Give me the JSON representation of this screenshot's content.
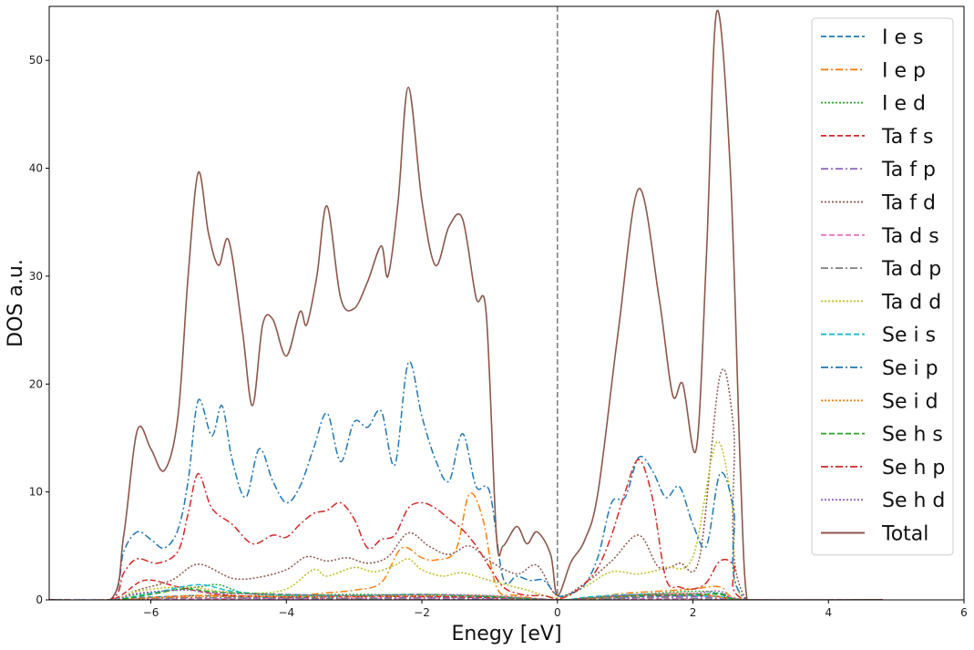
{
  "chart_data": {
    "type": "line",
    "title": "",
    "xlabel": "Enegy [eV]",
    "ylabel": "DOS a.u.",
    "xlim": [
      -7.5,
      6
    ],
    "ylim": [
      0,
      55
    ],
    "xticks": [
      -6,
      -4,
      -2,
      0,
      2,
      4,
      6
    ],
    "yticks": [
      0,
      10,
      20,
      30,
      40,
      50
    ],
    "xtick_labels": [
      "−6",
      "−4",
      "−2",
      "0",
      "2",
      "4",
      "6"
    ],
    "ytick_labels": [
      "0",
      "10",
      "20",
      "30",
      "40",
      "50"
    ],
    "grid": false,
    "legend_position": "top-right",
    "vline": {
      "x": 0,
      "color": "#808080",
      "style": "dashed"
    },
    "series": [
      {
        "name": "I e s",
        "color": "#1f77b4",
        "style": "dashed",
        "x": [
          -7.5,
          -6.6,
          -6.2,
          -5.8,
          -5.3,
          -4.8,
          -4.0,
          -3.0,
          -2.0,
          -1.0,
          -0.5,
          0,
          0.5,
          1.2,
          2.0,
          2.4,
          2.8,
          4.8
        ],
        "y": [
          0,
          0,
          0.2,
          0.3,
          0.4,
          0.3,
          0.2,
          0.3,
          0.3,
          0.2,
          0.1,
          0,
          0.1,
          0.3,
          0.4,
          0.6,
          0,
          0
        ]
      },
      {
        "name": "I e p",
        "color": "#ff7f0e",
        "style": "dashdot",
        "x": [
          -7.5,
          -6.6,
          -5.3,
          -4.0,
          -3.5,
          -3.0,
          -2.6,
          -2.3,
          -2.0,
          -1.8,
          -1.5,
          -1.3,
          -1.1,
          -0.9,
          -0.6,
          0,
          0.5,
          1.0,
          1.5,
          2.0,
          2.4,
          2.8,
          4.8
        ],
        "y": [
          0,
          0,
          0.4,
          0.3,
          0.6,
          0.9,
          1.6,
          4.8,
          3.9,
          3.7,
          4.6,
          9.8,
          7.5,
          1.2,
          0.4,
          0,
          0.2,
          0.6,
          0.8,
          1.0,
          1.2,
          0,
          0
        ]
      },
      {
        "name": "I e d",
        "color": "#2ca02c",
        "style": "dotted",
        "x": [
          -7.5,
          -6.6,
          -6.2,
          -5.3,
          -5.0,
          -4.6,
          -4.0,
          -3.0,
          -2.0,
          -1.0,
          0,
          0.5,
          1.2,
          2.0,
          2.4,
          2.8,
          4.8
        ],
        "y": [
          0,
          0,
          0.5,
          1.2,
          1.4,
          0.6,
          0.4,
          0.5,
          0.4,
          0.3,
          0,
          0.2,
          0.5,
          0.8,
          0.6,
          0,
          0
        ]
      },
      {
        "name": "Ta f s",
        "color": "#d62728",
        "style": "dashed",
        "x": [
          -7.5,
          -6.6,
          -6.1,
          -5.6,
          -5.0,
          -4.2,
          -3.0,
          -2.0,
          -1.0,
          0,
          0.5,
          1.2,
          2.0,
          2.4,
          2.8,
          4.8
        ],
        "y": [
          0,
          0,
          1.8,
          1.2,
          0.5,
          0.3,
          0.3,
          0.3,
          0.2,
          0,
          0.2,
          0.4,
          0.4,
          0.3,
          0,
          0
        ]
      },
      {
        "name": "Ta f p",
        "color": "#9467bd",
        "style": "dashdot",
        "x": [
          -7.5,
          -6.6,
          -5.5,
          -4.0,
          -2.0,
          0,
          1.0,
          2.0,
          2.8,
          4.8
        ],
        "y": [
          0,
          0,
          0.2,
          0.1,
          0.2,
          0,
          0.2,
          0.3,
          0,
          0
        ]
      },
      {
        "name": "Ta f d",
        "color": "#8c564b",
        "style": "dotted",
        "x": [
          -7.5,
          -6.6,
          -6.2,
          -5.7,
          -5.3,
          -4.8,
          -4.4,
          -4.0,
          -3.7,
          -3.4,
          -3.1,
          -2.8,
          -2.5,
          -2.2,
          -1.9,
          -1.6,
          -1.3,
          -1.0,
          -0.6,
          -0.3,
          0,
          0.4,
          0.8,
          1.2,
          1.5,
          1.8,
          2.1,
          2.4,
          2.6,
          2.8,
          4.8
        ],
        "y": [
          0,
          0,
          0.9,
          1.8,
          3.3,
          2.0,
          2.1,
          2.8,
          4.0,
          3.6,
          3.9,
          3.4,
          4.0,
          6.2,
          5.0,
          4.2,
          5.0,
          3.6,
          2.4,
          3.2,
          0.4,
          1.5,
          3.6,
          6.0,
          3.0,
          3.4,
          4.0,
          20.8,
          16.0,
          0,
          0
        ]
      },
      {
        "name": "Ta d s",
        "color": "#e377c2",
        "style": "dashed",
        "x": [
          -7.5,
          -6.6,
          -5.3,
          -3.0,
          0,
          1.5,
          2.8,
          4.8
        ],
        "y": [
          0,
          0,
          0.1,
          0.1,
          0,
          0.1,
          0,
          0
        ]
      },
      {
        "name": "Ta d p",
        "color": "#7f7f7f",
        "style": "dashdot",
        "x": [
          -7.5,
          -6.6,
          -5.3,
          -3.0,
          0,
          1.5,
          2.8,
          4.8
        ],
        "y": [
          0,
          0,
          0.2,
          0.1,
          0,
          0.2,
          0,
          0
        ]
      },
      {
        "name": "Ta d d",
        "color": "#bcbd22",
        "style": "dotted",
        "x": [
          -7.5,
          -6.6,
          -6.2,
          -5.5,
          -5.0,
          -4.5,
          -4.0,
          -3.6,
          -3.4,
          -3.0,
          -2.7,
          -2.4,
          -2.2,
          -2.0,
          -1.7,
          -1.4,
          -1.0,
          -0.5,
          0,
          0.4,
          0.8,
          1.2,
          1.6,
          2.0,
          2.35,
          2.6,
          2.8,
          4.8
        ],
        "y": [
          0,
          0,
          0.8,
          1.2,
          0.8,
          0.6,
          1.0,
          2.8,
          2.2,
          3.0,
          2.6,
          3.2,
          3.8,
          2.8,
          2.2,
          2.5,
          1.8,
          1.0,
          0.2,
          1.2,
          2.6,
          2.4,
          3.0,
          4.0,
          14.6,
          8.0,
          0,
          0
        ]
      },
      {
        "name": "Se i s",
        "color": "#17becf",
        "style": "dashed",
        "x": [
          -7.5,
          -6.6,
          -6.0,
          -5.3,
          -4.8,
          -4.0,
          -3.0,
          -2.0,
          -1.0,
          0,
          0.5,
          1.2,
          2.0,
          2.4,
          2.8,
          4.8
        ],
        "y": [
          0,
          0,
          0.6,
          1.4,
          0.8,
          0.4,
          0.4,
          0.5,
          0.3,
          0,
          0.3,
          0.5,
          0.4,
          0.3,
          0,
          0
        ]
      },
      {
        "name": "Se i p",
        "color": "#1f77b4",
        "style": "dashdot",
        "x": [
          -7.5,
          -6.6,
          -6.4,
          -6.2,
          -6.0,
          -5.8,
          -5.6,
          -5.45,
          -5.3,
          -5.1,
          -4.95,
          -4.8,
          -4.6,
          -4.4,
          -4.2,
          -4.0,
          -3.8,
          -3.6,
          -3.4,
          -3.2,
          -3.0,
          -2.8,
          -2.6,
          -2.4,
          -2.2,
          -2.0,
          -1.8,
          -1.6,
          -1.4,
          -1.2,
          -1.0,
          -0.8,
          -0.6,
          -0.4,
          -0.2,
          0,
          0.2,
          0.4,
          0.6,
          0.8,
          1.0,
          1.2,
          1.4,
          1.6,
          1.8,
          2.0,
          2.2,
          2.4,
          2.6,
          2.8,
          4.8
        ],
        "y": [
          0,
          0,
          4.5,
          6.3,
          5.6,
          4.8,
          6.5,
          11.0,
          18.5,
          15.2,
          18.0,
          13.0,
          9.5,
          14.0,
          11.0,
          9.0,
          10.5,
          14.0,
          17.3,
          12.8,
          16.5,
          16.0,
          17.5,
          12.5,
          22.0,
          17.0,
          13.0,
          11.0,
          15.4,
          10.5,
          10.0,
          2.0,
          2.2,
          1.8,
          1.8,
          0.4,
          0.6,
          1.4,
          4.0,
          9.0,
          9.5,
          13.2,
          12.0,
          9.5,
          10.5,
          7.0,
          5.0,
          11.7,
          8.5,
          0,
          0
        ]
      },
      {
        "name": "Se i d",
        "color": "#ff7f0e",
        "style": "dotted",
        "x": [
          -7.5,
          -6.6,
          -5.3,
          -3.0,
          -1.2,
          0,
          1.2,
          2.0,
          2.8,
          4.8
        ],
        "y": [
          0,
          0,
          0.3,
          0.3,
          0.4,
          0,
          0.4,
          0.6,
          0,
          0
        ]
      },
      {
        "name": "Se h s",
        "color": "#2ca02c",
        "style": "dashed",
        "x": [
          -7.5,
          -6.6,
          -6.1,
          -5.5,
          -5.0,
          -4.0,
          -3.0,
          -2.0,
          -1.0,
          0,
          0.5,
          1.2,
          2.0,
          2.4,
          2.8,
          4.8
        ],
        "y": [
          0,
          0,
          0.4,
          1.0,
          0.7,
          0.5,
          0.4,
          0.5,
          0.3,
          0,
          0.2,
          0.4,
          0.5,
          0.5,
          0,
          0
        ]
      },
      {
        "name": "Se h p",
        "color": "#d62728",
        "style": "dashdot",
        "x": [
          -7.5,
          -6.6,
          -6.4,
          -6.2,
          -5.9,
          -5.6,
          -5.45,
          -5.3,
          -5.1,
          -4.8,
          -4.5,
          -4.2,
          -4.0,
          -3.8,
          -3.6,
          -3.4,
          -3.2,
          -3.0,
          -2.8,
          -2.6,
          -2.4,
          -2.2,
          -2.0,
          -1.8,
          -1.6,
          -1.4,
          -1.2,
          -1.0,
          -0.8,
          -0.6,
          -0.4,
          -0.2,
          0,
          0.2,
          0.4,
          0.6,
          0.8,
          1.0,
          1.2,
          1.4,
          1.6,
          1.8,
          2.0,
          2.2,
          2.4,
          2.6,
          2.8,
          4.8
        ],
        "y": [
          0,
          0,
          2.5,
          3.8,
          3.4,
          4.5,
          8.0,
          11.7,
          8.5,
          7.0,
          5.2,
          6.0,
          5.8,
          7.0,
          8.0,
          8.3,
          9.0,
          7.5,
          4.8,
          5.6,
          6.0,
          8.5,
          9.0,
          8.5,
          7.5,
          6.5,
          5.0,
          3.0,
          1.2,
          0.6,
          0.4,
          0.4,
          0.1,
          0.5,
          1.5,
          3.0,
          6.0,
          10.0,
          13.0,
          9.5,
          2.0,
          1.2,
          1.0,
          1.6,
          3.6,
          3.2,
          0,
          0
        ]
      },
      {
        "name": "Se h d",
        "color": "#9467bd",
        "style": "dotted",
        "x": [
          -7.5,
          -6.6,
          -6.2,
          -5.5,
          -5.0,
          -4.0,
          -3.0,
          -2.0,
          -1.0,
          0,
          0.5,
          1.2,
          2.0,
          2.4,
          2.8,
          4.8
        ],
        "y": [
          0,
          0,
          0.6,
          0.9,
          0.6,
          0.5,
          0.4,
          0.5,
          0.4,
          0,
          0.2,
          0.5,
          0.6,
          0.8,
          0,
          0
        ]
      },
      {
        "name": "Total",
        "color": "#8c564b",
        "style": "solid",
        "x": [
          -7.5,
          -6.6,
          -6.4,
          -6.2,
          -6.0,
          -5.8,
          -5.6,
          -5.45,
          -5.3,
          -5.15,
          -5.0,
          -4.85,
          -4.65,
          -4.5,
          -4.35,
          -4.2,
          -4.0,
          -3.8,
          -3.7,
          -3.55,
          -3.4,
          -3.2,
          -3.0,
          -2.8,
          -2.6,
          -2.5,
          -2.35,
          -2.2,
          -2.0,
          -1.8,
          -1.6,
          -1.4,
          -1.2,
          -1.05,
          -0.9,
          -0.8,
          -0.6,
          -0.45,
          -0.3,
          -0.1,
          0,
          0.2,
          0.4,
          0.6,
          0.9,
          1.2,
          1.5,
          1.7,
          1.85,
          2.05,
          2.2,
          2.35,
          2.55,
          2.7,
          2.8,
          3.0,
          4.8
        ],
        "y": [
          0,
          0,
          6.0,
          15.7,
          14.0,
          12.0,
          17.0,
          30.0,
          39.6,
          34.0,
          31.0,
          33.3,
          25.0,
          18.0,
          25.5,
          26.0,
          22.6,
          26.7,
          25.5,
          30.0,
          36.5,
          28.0,
          27.0,
          29.5,
          32.8,
          30.0,
          37.0,
          47.5,
          37.0,
          31.0,
          34.6,
          35.3,
          28.0,
          26.5,
          6.0,
          5.0,
          6.8,
          5.2,
          6.3,
          4.2,
          0.4,
          3.5,
          5.5,
          10.0,
          25.0,
          38.1,
          28.0,
          19.0,
          20.0,
          14.0,
          32.0,
          54.5,
          40.0,
          12.0,
          0,
          0,
          0
        ]
      }
    ]
  }
}
